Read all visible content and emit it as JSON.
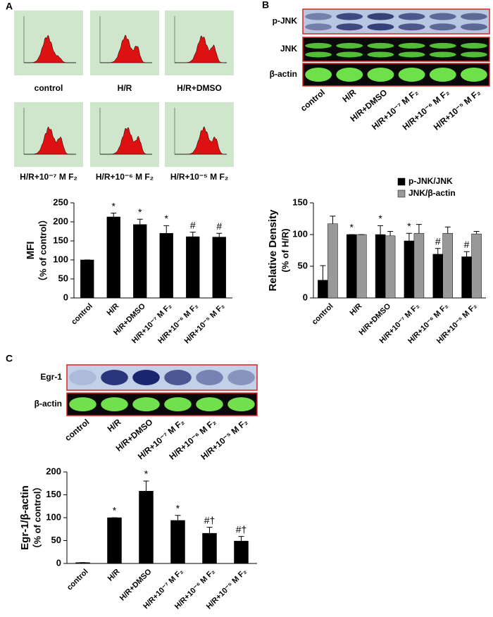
{
  "figure": {
    "panels": [
      "A",
      "B",
      "C"
    ],
    "histogram_labels": [
      "control",
      "H/R",
      "H/R+DMSO",
      "H/R+10⁻⁷ M F₂",
      "H/R+10⁻⁶ M F₂",
      "H/R+10⁻⁵ M F₂"
    ],
    "blot_b": {
      "rows": [
        "p-JNK",
        "JNK",
        "β-actin"
      ],
      "lanes": [
        "control",
        "H/R",
        "H/R+DMSO",
        "H/R+10⁻⁷ M F₂",
        "H/R+10⁻⁶ M F₂",
        "H/R+10⁻⁵ M F₂"
      ]
    },
    "blot_c": {
      "rows": [
        "Egr-1",
        "β-actin"
      ],
      "lanes": [
        "control",
        "H/R",
        "H/R+DMSO",
        "H/R+10⁻⁷ M F₂",
        "H/R+10⁻⁶ M F₂",
        "H/R+10⁻⁵ M F₂"
      ]
    }
  },
  "chart_data": [
    {
      "type": "bar",
      "ylabel": [
        "MFI",
        "（% of control）"
      ],
      "categories": [
        "control",
        "H/R",
        "H/R+DMSO",
        "H/R+10⁻⁷ M F₂",
        "H/R+10⁻⁶ M F₂",
        "H/R+10⁻⁵ M F₂"
      ],
      "series": [
        {
          "color": "#000000",
          "values": [
            100,
            213,
            193,
            170,
            161,
            160
          ],
          "errors": [
            0,
            10,
            14,
            20,
            12,
            10
          ],
          "annotations": [
            null,
            "*",
            "*",
            "*",
            "#",
            "#"
          ]
        }
      ],
      "ylim": [
        0,
        250
      ],
      "yticks": [
        0,
        50,
        100,
        150,
        200,
        250
      ]
    },
    {
      "type": "bar",
      "ylabel": [
        "Relative Density",
        "(% of H/R)"
      ],
      "categories": [
        "control",
        "H/R",
        "H/R+DMSO",
        "H/R+10⁻⁷ M F₂",
        "H/R+10⁻⁶ M F₂",
        "H/R+10⁻⁵ M F₂"
      ],
      "series": [
        {
          "name": "p-JNK/JNK",
          "color": "#000000",
          "values": [
            28,
            100,
            100,
            90,
            69,
            65
          ],
          "errors": [
            23,
            0,
            14,
            12,
            9,
            8
          ],
          "annotations": [
            null,
            "*",
            "*",
            "*",
            "#",
            "#"
          ]
        },
        {
          "name": "JNK/β-actin",
          "color": "#999999",
          "values": [
            117,
            100,
            98,
            102,
            102,
            101
          ],
          "errors": [
            12,
            0,
            7,
            14,
            10,
            4
          ]
        }
      ],
      "ylim": [
        0,
        150
      ],
      "yticks": [
        0,
        50,
        100,
        150
      ],
      "legend": "upper right"
    },
    {
      "type": "bar",
      "ylabel": [
        "Egr-1/β-actin",
        "（% of control）"
      ],
      "categories": [
        "control",
        "H/R",
        "H/R+DMSO",
        "H/R+10⁻⁷ M F₂",
        "H/R+10⁻⁶ M F₂",
        "H/R+10⁻⁵ M F₂"
      ],
      "series": [
        {
          "color": "#000000",
          "values": [
            2,
            100,
            158,
            94,
            66,
            49
          ],
          "errors": [
            0,
            0,
            22,
            11,
            13,
            10
          ],
          "annotations": [
            null,
            "*",
            "*",
            "*",
            "#†",
            "#†"
          ]
        }
      ],
      "ylim": [
        0,
        200
      ],
      "yticks": [
        0,
        50,
        100,
        150,
        200
      ]
    }
  ]
}
